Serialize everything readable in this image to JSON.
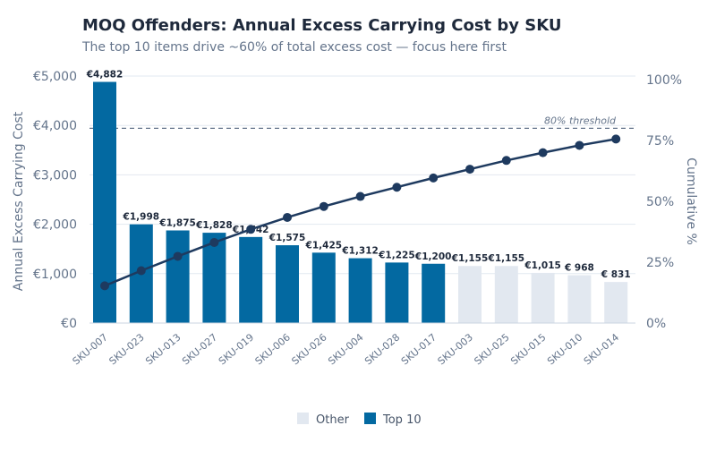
{
  "chart_data": {
    "type": "bar+line",
    "title": "MOQ Offenders: Annual Excess Carrying Cost by SKU",
    "subtitle": "The top 10 items drive ~60% of total excess cost — focus here first",
    "ylabel": "Annual Excess Carrying Cost",
    "y2label": "Cumulative %",
    "ylim": [
      0,
      5000
    ],
    "y2lim": [
      0,
      100
    ],
    "yticks": [
      "€0",
      "€1,000",
      "€2,000",
      "€3,000",
      "€4,000",
      "€5,000"
    ],
    "y2ticks": [
      "0%",
      "25%",
      "50%",
      "75%",
      "100%"
    ],
    "categories": [
      "SKU-007",
      "SKU-023",
      "SKU-013",
      "SKU-027",
      "SKU-019",
      "SKU-006",
      "SKU-026",
      "SKU-004",
      "SKU-028",
      "SKU-017",
      "SKU-003",
      "SKU-025",
      "SKU-015",
      "SKU-010",
      "SKU-014"
    ],
    "values": [
      4882,
      1998,
      1875,
      1828,
      1742,
      1575,
      1425,
      1312,
      1225,
      1200,
      1155,
      1155,
      1015,
      968,
      831
    ],
    "value_labels": [
      "€4,882",
      "€1,998",
      "€1,875",
      "€1,828",
      "€1,742",
      "€1,575",
      "€1,425",
      "€1,312",
      "€1,225",
      "€1,200",
      "€1,155",
      "€1,155",
      "€1,015",
      "€  968",
      "€  831"
    ],
    "groups": [
      "Top 10",
      "Top 10",
      "Top 10",
      "Top 10",
      "Top 10",
      "Top 10",
      "Top 10",
      "Top 10",
      "Top 10",
      "Top 10",
      "Other",
      "Other",
      "Other",
      "Other",
      "Other"
    ],
    "cumulative_pct": [
      15.3,
      21.5,
      27.4,
      33.1,
      38.5,
      43.4,
      47.9,
      52.0,
      55.8,
      59.6,
      63.2,
      66.8,
      70.0,
      73.0,
      75.6
    ],
    "threshold": {
      "value": 80,
      "label": "80% threshold"
    },
    "legend": [
      {
        "name": "Other",
        "color": "#e2e8f0"
      },
      {
        "name": "Top 10",
        "color": "#0369a1"
      }
    ],
    "legend_position": "bottom",
    "colors": {
      "top": "#0369a1",
      "other": "#e2e8f0",
      "line": "#1e3a5f",
      "axis_text": "#64748b",
      "grid": "#e2e8f0"
    },
    "grid": true
  }
}
